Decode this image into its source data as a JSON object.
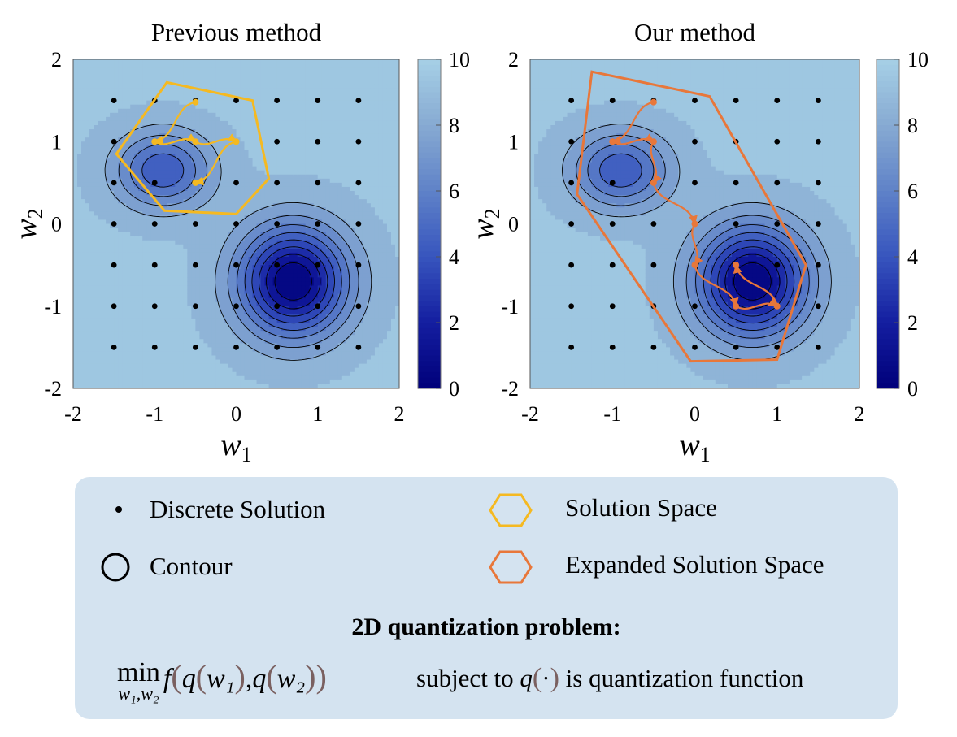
{
  "colors": {
    "previous_region": "#f5b921",
    "expanded_region": "#e8773a",
    "previous_path": "#f5b921",
    "our_path": "#e8773a",
    "colormap_low": "#00007a",
    "colormap_high": "#a6d0e6",
    "legend_bg": "#d4e3f0"
  },
  "chart_data": [
    {
      "type": "contour",
      "title": "Previous method",
      "xlabel": "w1",
      "ylabel": "w2",
      "xlim": [
        -2,
        2
      ],
      "ylim": [
        -2,
        2
      ],
      "xticks": [
        "-2",
        "-1",
        "0",
        "1",
        "2"
      ],
      "yticks": [
        "-2",
        "-1",
        "0",
        "1",
        "2"
      ],
      "colorbar": {
        "min": 0,
        "max": 10,
        "ticks": [
          "0",
          "2",
          "4",
          "6",
          "8",
          "10"
        ]
      },
      "contour_levels": [
        1,
        2,
        3,
        4,
        5,
        6,
        7,
        8
      ],
      "discrete_grid": [
        -1.5,
        -1,
        -0.5,
        0,
        0.5,
        1,
        1.5
      ],
      "solution_space": [
        [
          -0.85,
          1.72
        ],
        [
          0.2,
          1.5
        ],
        [
          0.4,
          0.55
        ],
        [
          0,
          0.12
        ],
        [
          -0.88,
          0.16
        ],
        [
          -1.47,
          0.85
        ]
      ],
      "path": [
        [
          -0.5,
          1.48
        ],
        [
          -1,
          1
        ],
        [
          -0.5,
          1
        ],
        [
          0,
          1
        ],
        [
          -0.5,
          0.5
        ]
      ]
    },
    {
      "type": "contour",
      "title": "Our method",
      "xlabel": "w1",
      "ylabel": "w2",
      "xlim": [
        -2,
        2
      ],
      "ylim": [
        -2,
        2
      ],
      "xticks": [
        "-2",
        "-1",
        "0",
        "1",
        "2"
      ],
      "yticks": [
        "-2",
        "-1",
        "0",
        "1",
        "2"
      ],
      "colorbar": {
        "min": 0,
        "max": 10,
        "ticks": [
          "0",
          "2",
          "4",
          "6",
          "8",
          "10"
        ]
      },
      "contour_levels": [
        1,
        2,
        3,
        4,
        5,
        6,
        7,
        8
      ],
      "discrete_grid": [
        -1.5,
        -1,
        -0.5,
        0,
        0.5,
        1,
        1.5
      ],
      "solution_space": [
        [
          -1.25,
          1.85
        ],
        [
          0.18,
          1.55
        ],
        [
          1.35,
          -0.5
        ],
        [
          1,
          -1.65
        ],
        [
          -0.05,
          -1.67
        ],
        [
          -1.43,
          0.36
        ]
      ],
      "path": [
        [
          -0.5,
          1.48
        ],
        [
          -1,
          1
        ],
        [
          -0.5,
          1
        ],
        [
          -0.5,
          0.5
        ],
        [
          0,
          0
        ],
        [
          0,
          -0.5
        ],
        [
          0.5,
          -1
        ],
        [
          1,
          -1
        ],
        [
          0.5,
          -0.5
        ]
      ]
    }
  ],
  "legend": {
    "discrete_solution": "Discrete Solution",
    "contour": "Contour",
    "solution_space": "Solution Space",
    "expanded_solution_space": "Expanded Solution Space",
    "discrete_icon": "dot-marker",
    "contour_icon": "circle-outline",
    "space_icon": "hexagon-outline"
  },
  "problem": {
    "title": "2D quantization problem:",
    "min_op": "min",
    "min_sub": "w₁,w₂",
    "f": "f",
    "q": "q",
    "arg1": "w₁",
    "arg2": "w₂",
    "comma": ",",
    "subject_text": "subject to",
    "q_dot": "q",
    "dot_arg": "·",
    "tail": "is quantization function"
  }
}
